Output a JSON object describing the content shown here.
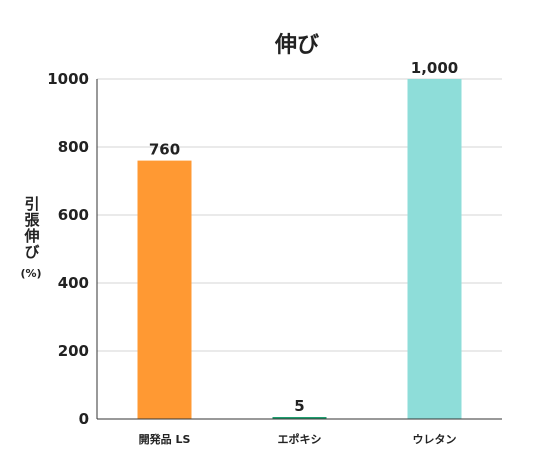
{
  "chart_data": {
    "type": "bar",
    "title": "伸び",
    "ylabel": "引張伸び",
    "ylabel_unit": "(%)",
    "xlabel": "",
    "categories": [
      "開発品 LS",
      "エポキシ",
      "ウレタン"
    ],
    "values": [
      760,
      5,
      1000
    ],
    "value_labels": [
      "760",
      "5",
      "1,000"
    ],
    "colors": [
      "#FF9933",
      "#1E9E6E",
      "#8EDDD9"
    ],
    "ylim": [
      0,
      1000
    ],
    "yticks": [
      0,
      200,
      400,
      600,
      800,
      1000
    ],
    "grid": true,
    "legend": "none"
  }
}
